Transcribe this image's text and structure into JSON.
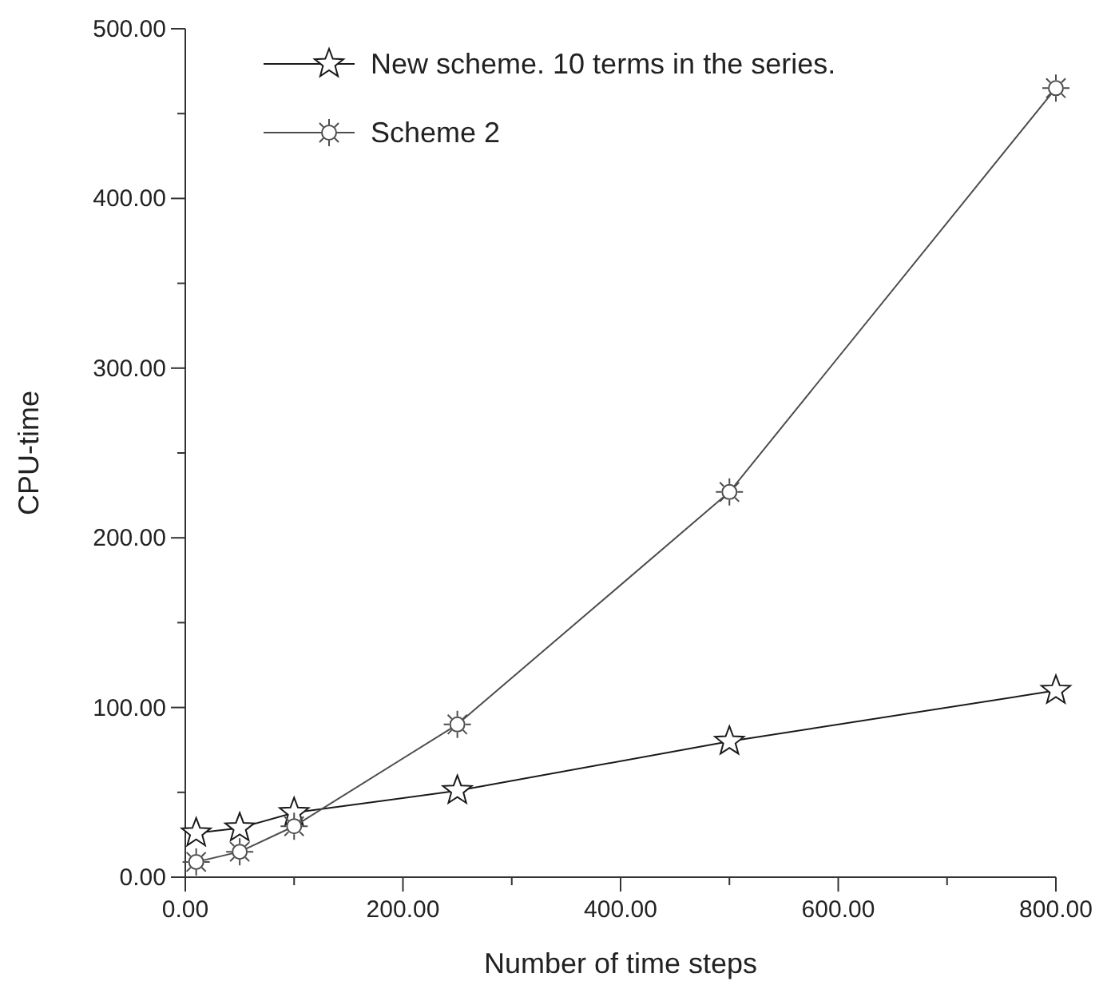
{
  "chart_data": {
    "type": "line",
    "xlabel": "Number of time steps",
    "ylabel": "CPU-time",
    "xlim": [
      0,
      800
    ],
    "ylim": [
      0,
      500
    ],
    "xticks": [
      {
        "value": 0,
        "label": "0.00"
      },
      {
        "value": 100,
        "label": null
      },
      {
        "value": 200,
        "label": "200.00"
      },
      {
        "value": 300,
        "label": null
      },
      {
        "value": 400,
        "label": "400.00"
      },
      {
        "value": 500,
        "label": null
      },
      {
        "value": 600,
        "label": "600.00"
      },
      {
        "value": 700,
        "label": null
      },
      {
        "value": 800,
        "label": "800.00"
      }
    ],
    "yticks": [
      {
        "value": 0,
        "label": "0.00"
      },
      {
        "value": 50,
        "label": null
      },
      {
        "value": 100,
        "label": "100.00"
      },
      {
        "value": 150,
        "label": null
      },
      {
        "value": 200,
        "label": "200.00"
      },
      {
        "value": 250,
        "label": null
      },
      {
        "value": 300,
        "label": "300.00"
      },
      {
        "value": 350,
        "label": null
      },
      {
        "value": 400,
        "label": "400.00"
      },
      {
        "value": 450,
        "label": null
      },
      {
        "value": 500,
        "label": "500.00"
      }
    ],
    "x": [
      10,
      50,
      100,
      250,
      500,
      800
    ],
    "series": [
      {
        "name": "New scheme. 10 terms in the series.",
        "color": "#1a1a1a",
        "marker": "star",
        "values": [
          26,
          29,
          38,
          51,
          80,
          110
        ]
      },
      {
        "name": "Scheme 2",
        "color": "#4d4d4d",
        "marker": "circle",
        "values": [
          9,
          15,
          30,
          90,
          227,
          465
        ]
      }
    ],
    "grid": false,
    "legend": "top left"
  }
}
